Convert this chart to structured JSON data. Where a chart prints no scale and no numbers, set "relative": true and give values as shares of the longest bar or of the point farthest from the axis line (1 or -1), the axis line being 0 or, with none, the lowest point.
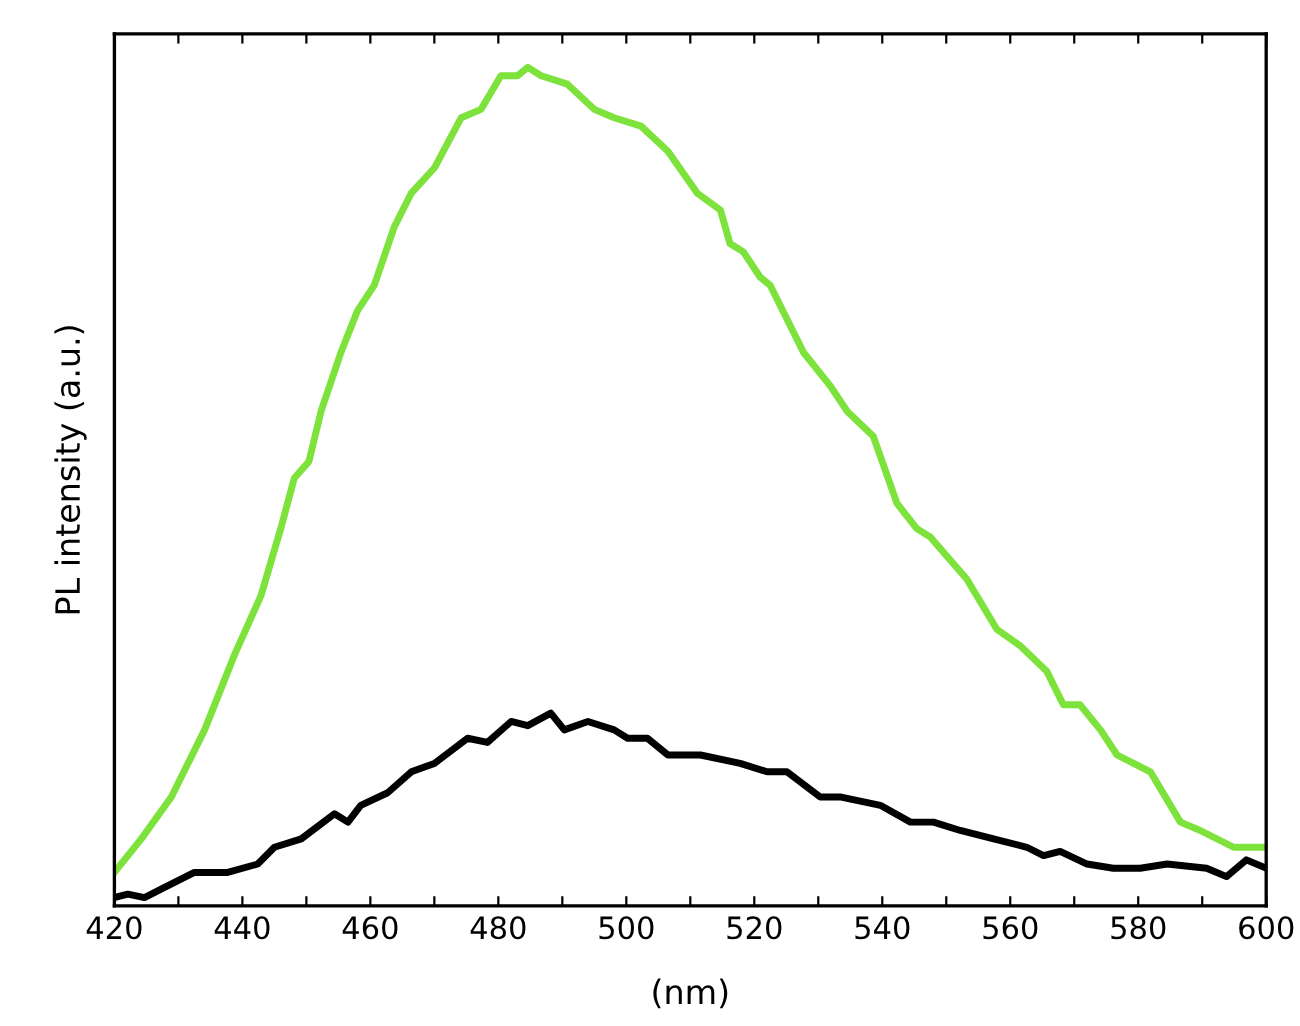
{
  "chart_data": {
    "type": "line",
    "relative": true,
    "xlabel": "(nm)",
    "ylabel": "PL intensity (a.u.)",
    "xlim": [
      420,
      600
    ],
    "xticks": [
      420,
      {
        "value": 430,
        "label": null
      },
      440,
      {
        "value": 450,
        "label": null
      },
      460,
      {
        "value": 470,
        "label": null
      },
      480,
      {
        "value": 490,
        "label": null
      },
      500,
      {
        "value": 510,
        "label": null
      },
      520,
      {
        "value": 530,
        "label": null
      },
      540,
      {
        "value": 550,
        "label": null
      },
      560,
      {
        "value": 570,
        "label": null
      },
      580,
      {
        "value": 590,
        "label": null
      },
      600
    ],
    "grid": false,
    "legend": false,
    "marker": "none",
    "line_style": "solid",
    "series": [
      {
        "color": "#7ee23c",
        "x": [
          420,
          424.2,
          428.9,
          434.1,
          438.8,
          442.9,
          446,
          448.1,
          450.4,
          452.3,
          455.4,
          458,
          460.6,
          463.75,
          466.4,
          470,
          474.2,
          477.3,
          480.4,
          483,
          484.6,
          486.7,
          490.8,
          495,
          498.1,
          502.3,
          506.5,
          511.1,
          514.7,
          516.2,
          518.3,
          520.9,
          522.5,
          527.7,
          531.9,
          534.5,
          538.6,
          542.3,
          545.4,
          547.5,
          553.2,
          557.9,
          561.6,
          565.7,
          568.3,
          570.9,
          574.1,
          576.7,
          581.9,
          586.6,
          589.7,
          594.9,
          600
        ],
        "values": [
          0.04,
          0.08,
          0.13,
          0.21,
          0.3,
          0.37,
          0.45,
          0.51,
          0.53,
          0.59,
          0.66,
          0.71,
          0.74,
          0.81,
          0.85,
          0.88,
          0.94,
          0.95,
          0.99,
          0.99,
          1.0,
          0.99,
          0.98,
          0.95,
          0.94,
          0.93,
          0.9,
          0.85,
          0.83,
          0.79,
          0.78,
          0.75,
          0.74,
          0.66,
          0.62,
          0.59,
          0.56,
          0.48,
          0.45,
          0.44,
          0.39,
          0.33,
          0.31,
          0.28,
          0.24,
          0.24,
          0.21,
          0.18,
          0.16,
          0.1,
          0.09,
          0.07,
          0.07
        ]
      },
      {
        "color": "#000000",
        "x": [
          420,
          422.1,
          424.7,
          427.3,
          432.5,
          437.7,
          442.4,
          445,
          449.2,
          454.4,
          456.5,
          458.5,
          462.7,
          466.4,
          470,
          475.2,
          478.3,
          482,
          484.6,
          488.2,
          490.3,
          494,
          498.1,
          500.2,
          503.3,
          506.5,
          511.6,
          517.8,
          522,
          525.1,
          530.3,
          533.4,
          539.7,
          544.4,
          548,
          552.2,
          557.4,
          562.6,
          565.2,
          567.8,
          572,
          576.1,
          580.3,
          584.5,
          590.7,
          593.8,
          596.9,
          600
        ],
        "values": [
          0.01,
          0.014,
          0.01,
          0.02,
          0.04,
          0.04,
          0.05,
          0.07,
          0.08,
          0.11,
          0.1,
          0.12,
          0.135,
          0.16,
          0.17,
          0.2,
          0.195,
          0.22,
          0.215,
          0.23,
          0.21,
          0.22,
          0.21,
          0.2,
          0.2,
          0.18,
          0.18,
          0.17,
          0.16,
          0.16,
          0.13,
          0.13,
          0.12,
          0.1,
          0.1,
          0.09,
          0.08,
          0.07,
          0.06,
          0.065,
          0.05,
          0.045,
          0.045,
          0.05,
          0.045,
          0.035,
          0.055,
          0.045
        ]
      }
    ]
  }
}
